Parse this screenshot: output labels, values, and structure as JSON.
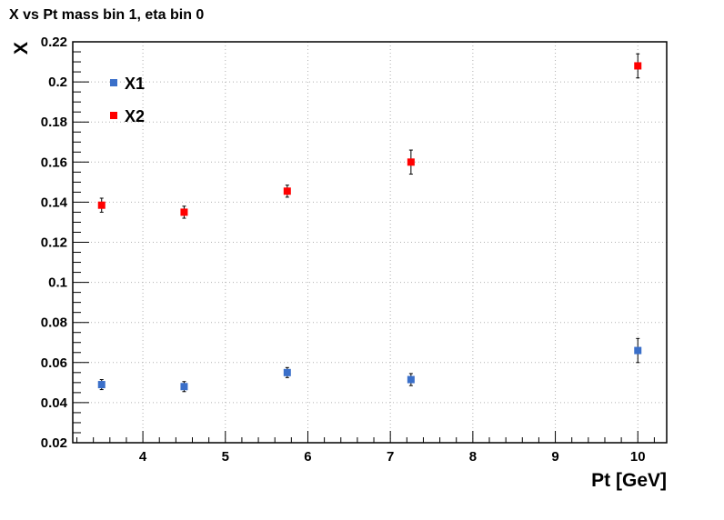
{
  "chart_data": {
    "type": "scatter",
    "title": "X vs Pt mass bin 1, eta bin 0",
    "xlabel": "Pt [GeV]",
    "ylabel": "X",
    "xlim": [
      3.15,
      10.35
    ],
    "ylim": [
      0.02,
      0.22
    ],
    "grid": true,
    "legend_position": "top-left",
    "x_ticks": [
      4,
      5,
      6,
      7,
      8,
      9,
      10
    ],
    "x_tick_labels": [
      "4",
      "5",
      "6",
      "7",
      "8",
      "9",
      "10"
    ],
    "y_ticks": [
      0.02,
      0.04,
      0.06,
      0.08,
      0.1,
      0.12,
      0.14,
      0.16,
      0.18,
      0.2,
      0.22
    ],
    "y_tick_labels": [
      "0.02",
      "0.04",
      "0.06",
      "0.08",
      "0.1",
      "0.12",
      "0.14",
      "0.16",
      "0.18",
      "0.2",
      "0.22"
    ],
    "series": [
      {
        "name": "X1",
        "color": "#3a6fc9",
        "x": [
          3.5,
          4.5,
          5.75,
          7.25,
          10.0
        ],
        "y": [
          0.049,
          0.048,
          0.055,
          0.0515,
          0.066
        ],
        "yerr": [
          0.0025,
          0.0025,
          0.0025,
          0.003,
          0.006
        ]
      },
      {
        "name": "X2",
        "color": "#ff0000",
        "x": [
          3.5,
          4.5,
          5.75,
          7.25,
          10.0
        ],
        "y": [
          0.1385,
          0.135,
          0.1455,
          0.16,
          0.208
        ],
        "yerr": [
          0.0035,
          0.003,
          0.003,
          0.006,
          0.006
        ]
      }
    ]
  }
}
